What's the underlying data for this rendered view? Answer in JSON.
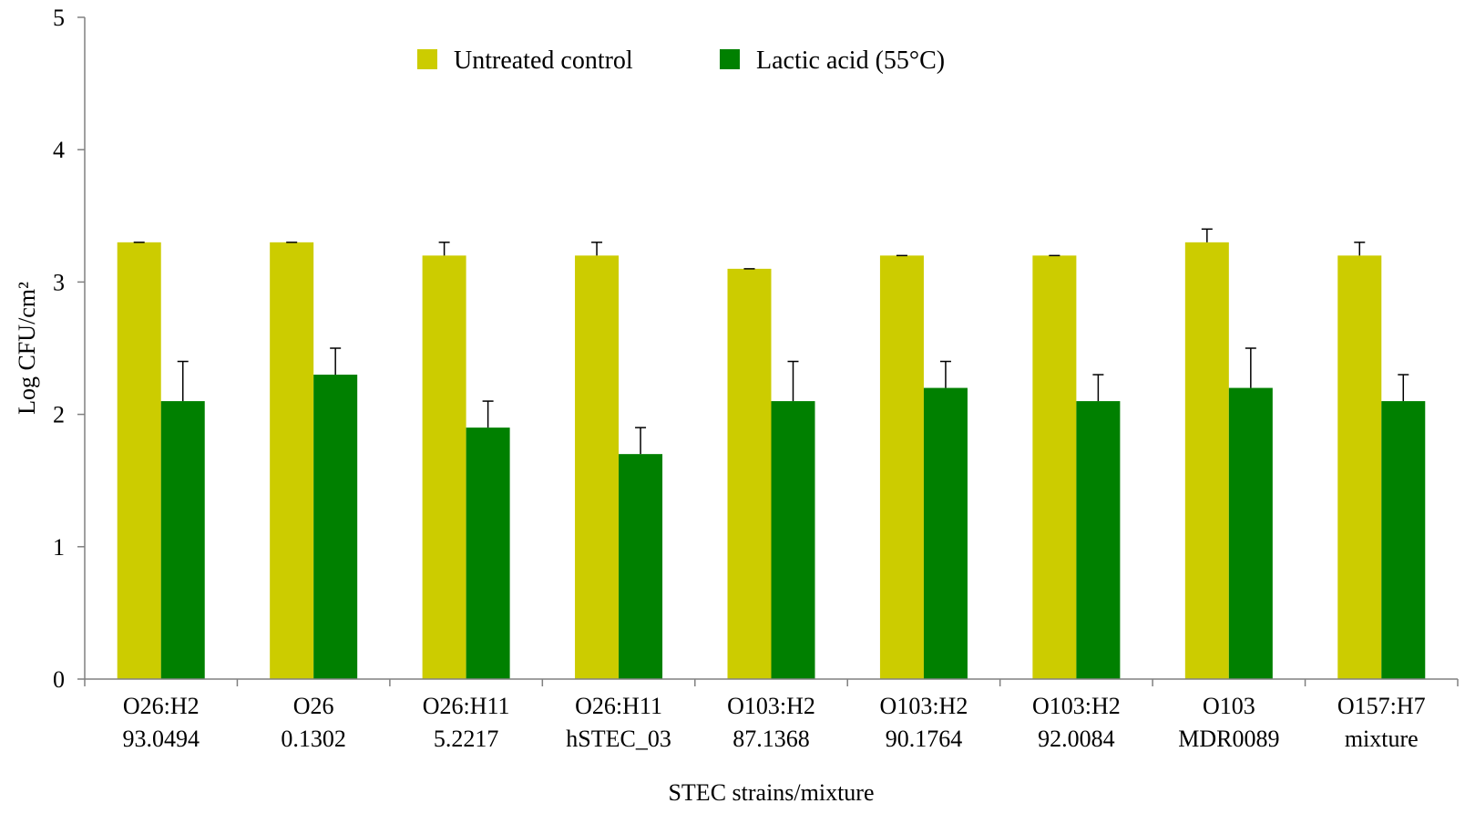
{
  "chart_data": {
    "type": "bar",
    "categories": [
      [
        "O26:H2",
        "93.0494"
      ],
      [
        "O26",
        "0.1302"
      ],
      [
        "O26:H11",
        "5.2217"
      ],
      [
        "O26:H11",
        "hSTEC_03"
      ],
      [
        "O103:H2",
        "87.1368"
      ],
      [
        "O103:H2",
        "90.1764"
      ],
      [
        "O103:H2",
        "92.0084"
      ],
      [
        "O103",
        "MDR0089"
      ],
      [
        "O157:H7",
        "mixture"
      ]
    ],
    "series": [
      {
        "name": "Untreated control",
        "color": "#cccc00",
        "values": [
          3.3,
          3.3,
          3.2,
          3.2,
          3.1,
          3.2,
          3.2,
          3.3,
          3.2
        ],
        "errors": [
          0.0,
          0.0,
          0.1,
          0.1,
          0.0,
          0.0,
          0.0,
          0.1,
          0.1
        ]
      },
      {
        "name": "Lactic acid (55°C)",
        "color": "#008000",
        "values": [
          2.1,
          2.3,
          1.9,
          1.7,
          2.1,
          2.2,
          2.1,
          2.2,
          2.1
        ],
        "errors": [
          0.3,
          0.2,
          0.2,
          0.2,
          0.3,
          0.2,
          0.2,
          0.3,
          0.2
        ]
      }
    ],
    "xlabel": "STEC strains/mixture",
    "ylabel": "Log CFU/cm²",
    "ylim": [
      0,
      5
    ],
    "yticks": [
      0,
      1,
      2,
      3,
      4,
      5
    ],
    "grid": false,
    "legend_position": "top-center"
  }
}
